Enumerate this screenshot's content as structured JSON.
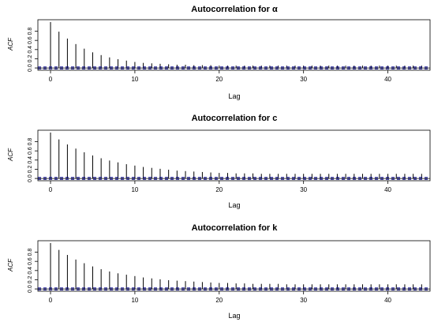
{
  "chart_data": [
    {
      "type": "bar",
      "title": "Autocorrelation for α",
      "xlabel": "Lag",
      "ylabel": "ACF",
      "xlim": [
        -1.5,
        45
      ],
      "ylim": [
        -0.05,
        1.05
      ],
      "xticks": [
        0,
        10,
        20,
        30,
        40
      ],
      "yticks": [
        0.0,
        0.2,
        0.4,
        0.6,
        0.8
      ],
      "confidence_band": 0.02,
      "x": [
        0,
        1,
        2,
        3,
        4,
        5,
        6,
        7,
        8,
        9,
        10,
        11,
        12,
        13,
        14,
        15,
        16,
        17,
        18,
        19,
        20,
        21,
        22,
        23,
        24,
        25,
        26,
        27,
        28,
        29,
        30,
        31,
        32,
        33,
        34,
        35,
        36,
        37,
        38,
        39,
        40,
        41,
        42,
        43,
        44
      ],
      "values": [
        1.0,
        0.79,
        0.64,
        0.52,
        0.42,
        0.34,
        0.28,
        0.23,
        0.19,
        0.16,
        0.13,
        0.11,
        0.1,
        0.09,
        0.08,
        0.07,
        0.07,
        0.06,
        0.06,
        0.06,
        0.05,
        0.05,
        0.05,
        0.05,
        0.05,
        0.05,
        0.05,
        0.05,
        0.05,
        0.05,
        0.05,
        0.05,
        0.05,
        0.05,
        0.05,
        0.05,
        0.05,
        0.05,
        0.05,
        0.05,
        0.05,
        0.05,
        0.05,
        0.05,
        0.05
      ]
    },
    {
      "type": "bar",
      "title": "Autocorrelation for c",
      "xlabel": "Lag",
      "ylabel": "ACF",
      "xlim": [
        -1.5,
        45
      ],
      "ylim": [
        -0.05,
        1.05
      ],
      "xticks": [
        0,
        10,
        20,
        30,
        40
      ],
      "yticks": [
        0.0,
        0.2,
        0.4,
        0.6,
        0.8
      ],
      "confidence_band": 0.02,
      "x": [
        0,
        1,
        2,
        3,
        4,
        5,
        6,
        7,
        8,
        9,
        10,
        11,
        12,
        13,
        14,
        15,
        16,
        17,
        18,
        19,
        20,
        21,
        22,
        23,
        24,
        25,
        26,
        27,
        28,
        29,
        30,
        31,
        32,
        33,
        34,
        35,
        36,
        37,
        38,
        39,
        40,
        41,
        42,
        43,
        44
      ],
      "values": [
        1.0,
        0.85,
        0.74,
        0.65,
        0.57,
        0.5,
        0.44,
        0.39,
        0.35,
        0.31,
        0.28,
        0.25,
        0.23,
        0.21,
        0.19,
        0.17,
        0.16,
        0.15,
        0.14,
        0.13,
        0.12,
        0.12,
        0.11,
        0.11,
        0.11,
        0.1,
        0.1,
        0.1,
        0.1,
        0.1,
        0.1,
        0.1,
        0.1,
        0.1,
        0.1,
        0.1,
        0.1,
        0.1,
        0.1,
        0.1,
        0.1,
        0.1,
        0.1,
        0.1,
        0.1
      ]
    },
    {
      "type": "bar",
      "title": "Autocorrelation for k",
      "xlabel": "Lag",
      "ylabel": "ACF",
      "xlim": [
        -1.5,
        45
      ],
      "ylim": [
        -0.05,
        1.05
      ],
      "xticks": [
        0,
        10,
        20,
        30,
        40
      ],
      "yticks": [
        0.0,
        0.2,
        0.4,
        0.6,
        0.8
      ],
      "confidence_band": 0.02,
      "x": [
        0,
        1,
        2,
        3,
        4,
        5,
        6,
        7,
        8,
        9,
        10,
        11,
        12,
        13,
        14,
        15,
        16,
        17,
        18,
        19,
        20,
        21,
        22,
        23,
        24,
        25,
        26,
        27,
        28,
        29,
        30,
        31,
        32,
        33,
        34,
        35,
        36,
        37,
        38,
        39,
        40,
        41,
        42,
        43,
        44
      ],
      "values": [
        1.0,
        0.85,
        0.74,
        0.64,
        0.56,
        0.49,
        0.43,
        0.38,
        0.34,
        0.31,
        0.28,
        0.25,
        0.23,
        0.21,
        0.19,
        0.18,
        0.17,
        0.16,
        0.15,
        0.14,
        0.13,
        0.13,
        0.12,
        0.12,
        0.11,
        0.11,
        0.11,
        0.11,
        0.1,
        0.1,
        0.1,
        0.1,
        0.1,
        0.1,
        0.1,
        0.1,
        0.1,
        0.1,
        0.1,
        0.1,
        0.1,
        0.1,
        0.1,
        0.1,
        0.1
      ]
    }
  ],
  "colors": {
    "bars": "#000000",
    "confidence_band": "#00008b",
    "axis": "#000000",
    "background": "#ffffff"
  }
}
